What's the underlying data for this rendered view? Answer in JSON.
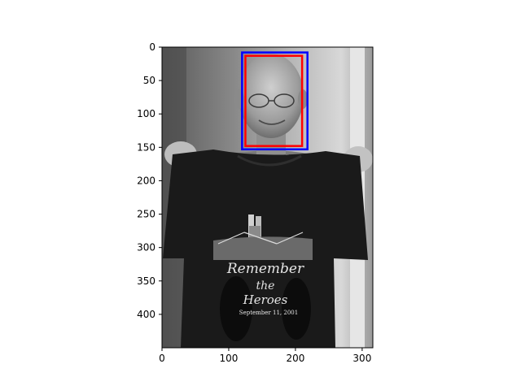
{
  "chart_data": {
    "type": "image",
    "title": "",
    "xlabel": "",
    "ylabel": "",
    "image_size": {
      "width": 316,
      "height": 450
    },
    "xlim": [
      0,
      316
    ],
    "ylim": [
      450,
      0
    ],
    "x_ticks": [
      0,
      100,
      200,
      300
    ],
    "y_ticks": [
      0,
      50,
      100,
      150,
      200,
      250,
      300,
      350,
      400
    ],
    "image_description": "grayscale photo of a smiling bald man with glasses holding up a black T-shirt",
    "shirt_text": [
      "Remember",
      "the",
      "Heroes",
      "September 11, 2001"
    ],
    "boxes": [
      {
        "name": "blue box",
        "color": "#0000ff",
        "x0": 120,
        "y0": 8,
        "x1": 218,
        "y1": 153
      },
      {
        "name": "red box",
        "color": "#ff0000",
        "x0": 125,
        "y0": 13,
        "x1": 210,
        "y1": 148
      }
    ]
  },
  "colors": {
    "background": "#ffffff",
    "axis": "#000000",
    "shirt": "#1a1a1a"
  }
}
